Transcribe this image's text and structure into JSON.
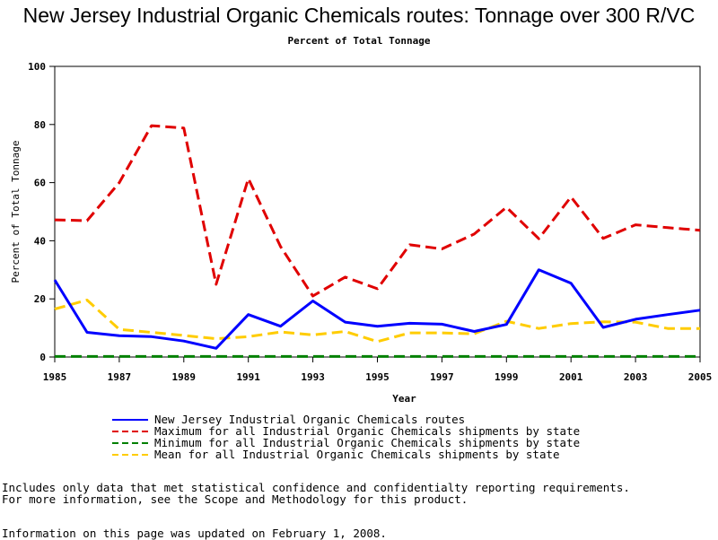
{
  "header": {
    "title": "New Jersey Industrial Organic Chemicals routes: Tonnage over 300 R/VC",
    "subtitle": "Percent of Total Tonnage"
  },
  "chart_data": {
    "type": "line",
    "xlabel": "Year",
    "ylabel": "Percent of Total Tonnage",
    "xlim": [
      1985,
      2005
    ],
    "ylim": [
      0,
      100
    ],
    "x_ticks": [
      1985,
      1987,
      1989,
      1991,
      1993,
      1995,
      1997,
      1999,
      2001,
      2003,
      2005
    ],
    "y_ticks": [
      0,
      20,
      40,
      60,
      80,
      100
    ],
    "x": [
      1985,
      1986,
      1987,
      1988,
      1989,
      1990,
      1991,
      1992,
      1993,
      1994,
      1995,
      1996,
      1997,
      1998,
      1999,
      2000,
      2001,
      2002,
      2003,
      2004,
      2005
    ],
    "legend_position": "bottom",
    "series": [
      {
        "name": "New Jersey Industrial Organic Chemicals routes",
        "color": "#0000ff",
        "style": "solid",
        "values": [
          26.5,
          8.5,
          7.3,
          7.0,
          5.5,
          3.0,
          14.6,
          10.6,
          19.3,
          12.0,
          10.6,
          11.6,
          11.3,
          8.8,
          11.2,
          30.0,
          25.4,
          10.2,
          13.0,
          14.6,
          16.1
        ]
      },
      {
        "name": "Maximum for all Industrial Organic Chemicals shipments by state",
        "color": "#e00000",
        "style": "dashed",
        "values": [
          47.2,
          46.9,
          60.0,
          79.6,
          78.8,
          25.0,
          61.4,
          38.0,
          21.0,
          27.5,
          23.5,
          38.6,
          37.2,
          42.3,
          51.5,
          40.7,
          55.1,
          40.8,
          45.5,
          44.5,
          43.6
        ]
      },
      {
        "name": "Minimum for all Industrial Organic Chemicals shipments by state",
        "color": "#008000",
        "style": "dashed",
        "values": [
          0.2,
          0.2,
          0.2,
          0.2,
          0.2,
          0.2,
          0.2,
          0.2,
          0.2,
          0.2,
          0.2,
          0.2,
          0.2,
          0.2,
          0.2,
          0.2,
          0.2,
          0.2,
          0.2,
          0.2,
          0.2
        ]
      },
      {
        "name": "Mean for all Industrial Organic Chemicals shipments by state",
        "color": "#ffcc00",
        "style": "dashed",
        "values": [
          16.5,
          19.6,
          9.5,
          8.5,
          7.4,
          6.3,
          7.0,
          8.6,
          7.6,
          8.8,
          5.3,
          8.3,
          8.3,
          8.0,
          12.3,
          9.8,
          11.5,
          12.1,
          12.0,
          9.8,
          9.8
        ]
      }
    ]
  },
  "footer": {
    "notes": [
      "Includes only data that met statistical confidence and confidentialty reporting requirements.",
      "For more information, see the Scope and Methodology for this product."
    ],
    "updated": "Information on this page was updated on February 1, 2008."
  }
}
